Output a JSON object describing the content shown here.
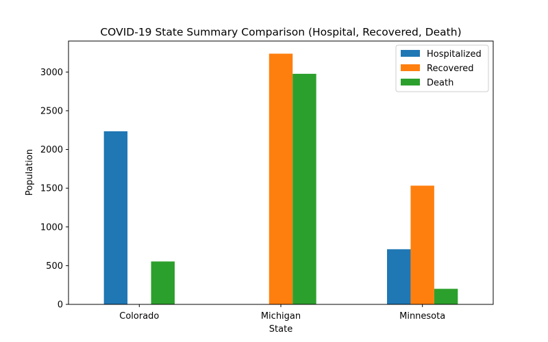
{
  "chart_data": {
    "type": "bar",
    "title": "COVID-19 State Summary Comparison (Hospital, Recovered, Death)",
    "xlabel": "State",
    "ylabel": "Population",
    "categories": [
      "Colorado",
      "Michigan",
      "Minnesota"
    ],
    "series": [
      {
        "name": "Hospitalized",
        "color": "#1f77b4",
        "values": [
          2235,
          0,
          712
        ]
      },
      {
        "name": "Recovered",
        "color": "#ff7f0e",
        "values": [
          0,
          3237,
          1533
        ]
      },
      {
        "name": "Death",
        "color": "#2ca02c",
        "values": [
          554,
          2977,
          201
        ]
      }
    ],
    "ylim": [
      0,
      3400
    ],
    "yticks": [
      0,
      500,
      1000,
      1500,
      2000,
      2500,
      3000
    ],
    "ytick_labels": [
      "0",
      "500",
      "1000",
      "1500",
      "2000",
      "2500",
      "3000"
    ],
    "grid": false,
    "legend_position": "top-right"
  }
}
